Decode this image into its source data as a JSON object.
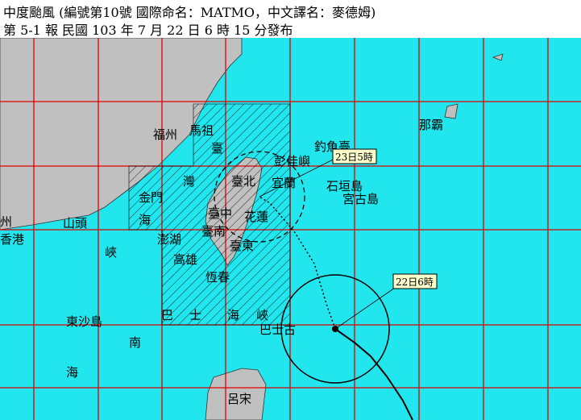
{
  "header": {
    "title": "中度颱風 (編號第10號 國際命名：MATMO，中文譯名：麥德姆)",
    "issue": "第 5-1 報 民國 103 年 7 月 22 日 6 時 15 分發布"
  },
  "labels": [
    "福州",
    "馬祖",
    "臺",
    "灣",
    "海",
    "峽",
    "金門",
    "臺北",
    "宜蘭",
    "彭佳嶼",
    "釣魚臺",
    "石垣島",
    "宮古島",
    "那霸",
    "臺中",
    "花蓮",
    "臺南",
    "澎湖",
    "高雄",
    "臺東",
    "恆春",
    "山頭",
    "香港",
    "州",
    "東沙島",
    "南",
    "海",
    "巴",
    "士",
    "海",
    "峽",
    "巴士古",
    "呂宋"
  ],
  "track_labels": [
    "23日5時",
    "22日6時"
  ]
}
